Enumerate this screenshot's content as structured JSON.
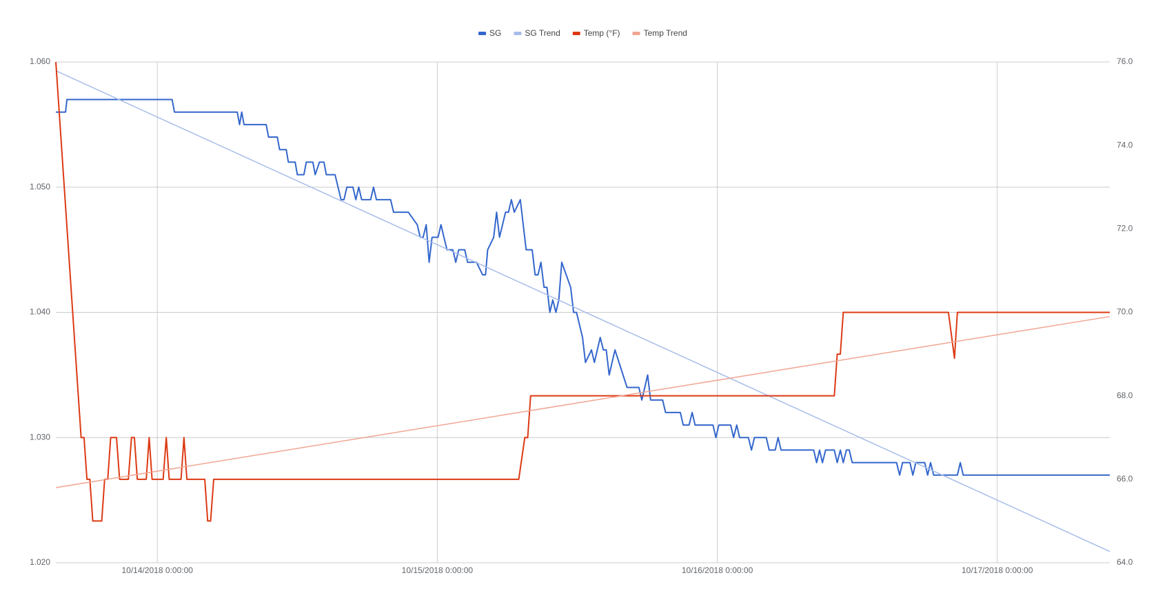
{
  "chart_data": {
    "type": "line",
    "legend": "top",
    "grid": true,
    "xlim": [
      "2018-10-13T15:18",
      "2018-10-17T09:39"
    ],
    "xticks": [
      {
        "value": "2018-10-14T00:00",
        "label": "10/14/2018 0:00:00"
      },
      {
        "value": "2018-10-15T00:00",
        "label": "10/15/2018 0:00:00"
      },
      {
        "value": "2018-10-16T00:00",
        "label": "10/16/2018 0:00:00"
      },
      {
        "value": "2018-10-17T00:00",
        "label": "10/17/2018 0:00:00"
      }
    ],
    "ylim": [
      1.02,
      1.06
    ],
    "yticks": [
      {
        "value": 1.02,
        "label": "1.020"
      },
      {
        "value": 1.03,
        "label": "1.030"
      },
      {
        "value": 1.04,
        "label": "1.040"
      },
      {
        "value": 1.05,
        "label": "1.050"
      },
      {
        "value": 1.06,
        "label": "1.060"
      }
    ],
    "y2lim": [
      64,
      76
    ],
    "y2ticks": [
      {
        "value": 64,
        "label": "64.0"
      },
      {
        "value": 66,
        "label": "66.0"
      },
      {
        "value": 68,
        "label": "68.0"
      },
      {
        "value": 70,
        "label": "70.0"
      },
      {
        "value": 72,
        "label": "72.0"
      },
      {
        "value": 74,
        "label": "74.0"
      },
      {
        "value": 76,
        "label": "76.0"
      }
    ],
    "series": [
      {
        "name": "SG",
        "color": "#3366cc",
        "x": [
          "2018-10-13T15:18",
          "2018-10-13T16:08",
          "2018-10-13T16:15",
          "2018-10-14T01:16",
          "2018-10-14T01:28",
          "2018-10-14T06:51",
          "2018-10-14T07:03",
          "2018-10-14T07:14",
          "2018-10-14T07:26",
          "2018-10-14T09:20",
          "2018-10-14T09:32",
          "2018-10-14T10:17",
          "2018-10-14T10:29",
          "2018-10-14T11:03",
          "2018-10-14T11:14",
          "2018-10-14T11:49",
          "2018-10-14T12:00",
          "2018-10-14T12:34",
          "2018-10-14T12:46",
          "2018-10-14T13:20",
          "2018-10-14T13:32",
          "2018-10-14T13:54",
          "2018-10-14T14:17",
          "2018-10-14T14:29",
          "2018-10-14T15:14",
          "2018-10-14T15:45",
          "2018-10-14T16:00",
          "2018-10-14T16:15",
          "2018-10-14T16:46",
          "2018-10-14T17:01",
          "2018-10-14T17:16",
          "2018-10-14T17:31",
          "2018-10-14T18:17",
          "2018-10-14T18:32",
          "2018-10-14T18:47",
          "2018-10-14T20:00",
          "2018-10-14T20:15",
          "2018-10-14T21:31",
          "2018-10-14T22:17",
          "2018-10-14T22:32",
          "2018-10-14T22:47",
          "2018-10-14T23:03",
          "2018-10-14T23:18",
          "2018-10-14T23:33",
          "2018-10-15T00:04",
          "2018-10-15T00:19",
          "2018-10-15T00:34",
          "2018-10-15T00:50",
          "2018-10-15T01:20",
          "2018-10-15T01:35",
          "2018-10-15T01:50",
          "2018-10-15T02:21",
          "2018-10-15T02:36",
          "2018-10-15T03:22",
          "2018-10-15T03:53",
          "2018-10-15T04:08",
          "2018-10-15T04:19",
          "2018-10-15T04:50",
          "2018-10-15T05:05",
          "2018-10-15T05:20",
          "2018-10-15T05:51",
          "2018-10-15T06:06",
          "2018-10-15T06:21",
          "2018-10-15T06:36",
          "2018-10-15T07:07",
          "2018-10-15T07:37",
          "2018-10-15T08:08",
          "2018-10-15T08:23",
          "2018-10-15T08:38",
          "2018-10-15T08:53",
          "2018-10-15T09:09",
          "2018-10-15T09:24",
          "2018-10-15T09:39",
          "2018-10-15T09:54",
          "2018-10-15T10:10",
          "2018-10-15T10:25",
          "2018-10-15T10:40",
          "2018-10-15T11:26",
          "2018-10-15T11:41",
          "2018-10-15T11:56",
          "2018-10-15T12:27",
          "2018-10-15T12:42",
          "2018-10-15T13:13",
          "2018-10-15T13:28",
          "2018-10-15T13:58",
          "2018-10-15T14:14",
          "2018-10-15T14:29",
          "2018-10-15T14:44",
          "2018-10-15T15:14",
          "2018-10-15T16:16",
          "2018-10-15T17:17",
          "2018-10-15T17:32",
          "2018-10-15T18:02",
          "2018-10-15T18:17",
          "2018-10-15T19:19",
          "2018-10-15T19:34",
          "2018-10-15T20:50",
          "2018-10-15T21:05",
          "2018-10-15T21:35",
          "2018-10-15T21:51",
          "2018-10-15T22:06",
          "2018-10-15T23:38",
          "2018-10-15T23:53",
          "2018-10-16T00:08",
          "2018-10-16T01:09",
          "2018-10-16T01:24",
          "2018-10-16T01:40",
          "2018-10-16T01:55",
          "2018-10-16T02:40",
          "2018-10-16T02:56",
          "2018-10-16T03:11",
          "2018-10-16T04:12",
          "2018-10-16T04:27",
          "2018-10-16T04:58",
          "2018-10-16T05:13",
          "2018-10-16T05:28",
          "2018-10-16T08:16",
          "2018-10-16T08:31",
          "2018-10-16T08:46",
          "2018-10-16T09:01",
          "2018-10-16T09:17",
          "2018-10-16T10:02",
          "2018-10-16T10:17",
          "2018-10-16T10:33",
          "2018-10-16T10:48",
          "2018-10-16T11:04",
          "2018-10-16T11:19",
          "2018-10-16T11:34",
          "2018-10-16T15:22",
          "2018-10-16T15:38",
          "2018-10-16T15:53",
          "2018-10-16T16:31",
          "2018-10-16T16:46",
          "2018-10-16T17:01",
          "2018-10-16T17:47",
          "2018-10-16T18:02",
          "2018-10-16T18:17",
          "2018-10-16T18:33",
          "2018-10-16T20:35",
          "2018-10-16T20:50",
          "2018-10-16T21:05",
          "2018-10-17T09:39"
        ],
        "values": [
          1.056,
          1.056,
          1.057,
          1.057,
          1.056,
          1.056,
          1.055,
          1.056,
          1.055,
          1.055,
          1.054,
          1.054,
          1.053,
          1.053,
          1.052,
          1.052,
          1.051,
          1.051,
          1.052,
          1.052,
          1.051,
          1.052,
          1.052,
          1.051,
          1.051,
          1.049,
          1.049,
          1.05,
          1.05,
          1.049,
          1.05,
          1.049,
          1.049,
          1.05,
          1.049,
          1.049,
          1.048,
          1.048,
          1.047,
          1.046,
          1.046,
          1.047,
          1.044,
          1.046,
          1.046,
          1.047,
          1.046,
          1.045,
          1.045,
          1.044,
          1.045,
          1.045,
          1.044,
          1.044,
          1.043,
          1.043,
          1.045,
          1.046,
          1.048,
          1.046,
          1.048,
          1.048,
          1.049,
          1.048,
          1.049,
          1.045,
          1.045,
          1.043,
          1.043,
          1.044,
          1.042,
          1.042,
          1.04,
          1.041,
          1.04,
          1.041,
          1.044,
          1.042,
          1.04,
          1.04,
          1.038,
          1.036,
          1.037,
          1.036,
          1.038,
          1.037,
          1.037,
          1.035,
          1.037,
          1.034,
          1.034,
          1.033,
          1.035,
          1.033,
          1.033,
          1.032,
          1.032,
          1.031,
          1.031,
          1.032,
          1.031,
          1.031,
          1.03,
          1.031,
          1.031,
          1.03,
          1.031,
          1.03,
          1.03,
          1.029,
          1.03,
          1.03,
          1.029,
          1.029,
          1.03,
          1.029,
          1.029,
          1.028,
          1.029,
          1.028,
          1.029,
          1.029,
          1.028,
          1.029,
          1.028,
          1.029,
          1.029,
          1.028,
          1.028,
          1.027,
          1.028,
          1.028,
          1.027,
          1.028,
          1.028,
          1.027,
          1.028,
          1.027,
          1.027,
          1.028,
          1.027,
          1.027
        ]
      },
      {
        "name": "SG Trend",
        "color": "#a7bde9",
        "x": [
          "2018-10-13T15:18",
          "2018-10-17T09:39"
        ],
        "values": [
          1.0593,
          1.0209
        ]
      },
      {
        "name": "Temp (°F)",
        "color": "#dc3912",
        "axis": "y2",
        "x": [
          "2018-10-13T15:18",
          "2018-10-13T17:28",
          "2018-10-13T17:43",
          "2018-10-13T17:58",
          "2018-10-13T18:13",
          "2018-10-13T18:28",
          "2018-10-13T19:14",
          "2018-10-13T19:29",
          "2018-10-13T19:45",
          "2018-10-13T20:00",
          "2018-10-13T20:30",
          "2018-10-13T20:46",
          "2018-10-13T21:31",
          "2018-10-13T21:47",
          "2018-10-13T22:02",
          "2018-10-13T22:17",
          "2018-10-13T23:03",
          "2018-10-13T23:18",
          "2018-10-13T23:33",
          "2018-10-14T00:30",
          "2018-10-14T00:46",
          "2018-10-14T01:01",
          "2018-10-14T02:02",
          "2018-10-14T02:17",
          "2018-10-14T02:32",
          "2018-10-14T04:04",
          "2018-10-14T04:19",
          "2018-10-14T04:34",
          "2018-10-14T04:50",
          "2018-10-15T06:59",
          "2018-10-15T07:30",
          "2018-10-15T07:45",
          "2018-10-15T08:00",
          "2018-10-16T10:02",
          "2018-10-16T10:17",
          "2018-10-16T10:33",
          "2018-10-16T10:48",
          "2018-10-16T19:49",
          "2018-10-16T20:20",
          "2018-10-16T20:35",
          "2018-10-17T09:39"
        ],
        "values": [
          76,
          67,
          67,
          66,
          66,
          65,
          65,
          66,
          66,
          67,
          67,
          66,
          66,
          67,
          67,
          66,
          66,
          67,
          66,
          66,
          67,
          66,
          66,
          67,
          66,
          66,
          65,
          65,
          66,
          66,
          67,
          67,
          68,
          68,
          69,
          69,
          70,
          70,
          68.9,
          70,
          70
        ]
      },
      {
        "name": "Temp Trend",
        "color": "#f1a592",
        "axis": "y2",
        "x": [
          "2018-10-13T15:18",
          "2018-10-17T09:39"
        ],
        "values": [
          65.8,
          69.9
        ]
      }
    ]
  }
}
